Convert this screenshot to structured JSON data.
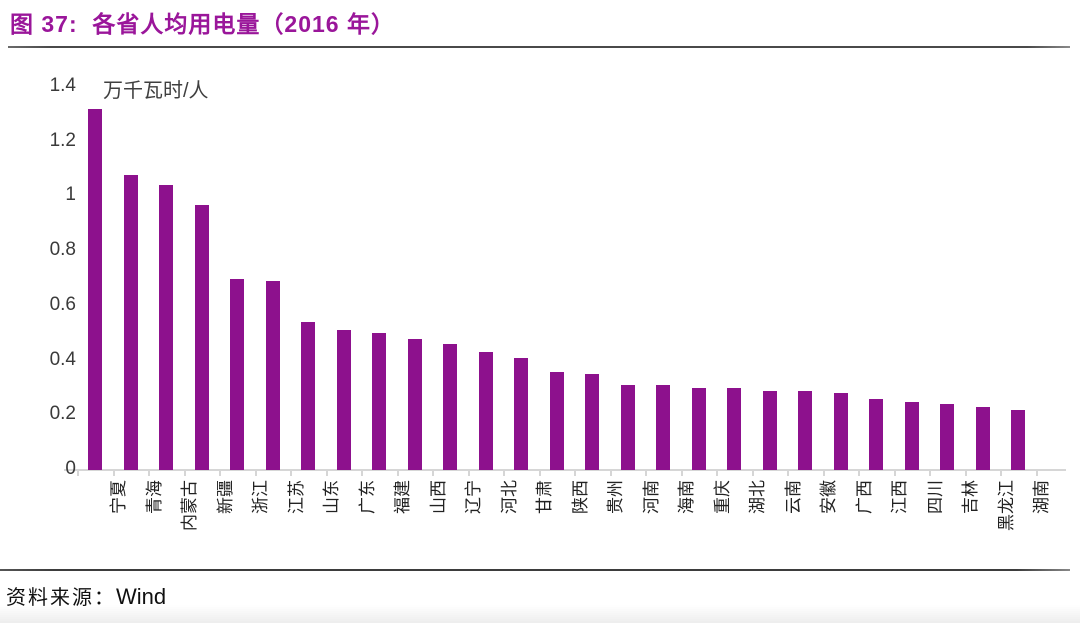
{
  "header": {
    "title": "图 37:  各省人均用电量（2016 年）"
  },
  "footer": {
    "source_label": "资料来源：",
    "source_value": "Wind"
  },
  "colors": {
    "title": "#9A169A",
    "bar": "#8D118D",
    "divider": "#4a4a4a",
    "axis": "#d6d6d6"
  },
  "chart_data": {
    "type": "bar",
    "title": "各省人均用电量（2016 年）",
    "unit_label": "万千瓦时/人",
    "xlabel": "",
    "ylabel": "万千瓦时/人",
    "ylim": [
      0,
      1.4
    ],
    "yticks": [
      0,
      0.2,
      0.4,
      0.6,
      0.8,
      1,
      1.2,
      1.4
    ],
    "grid": false,
    "legend": "none",
    "bar_color": "#8D118D",
    "categories": [
      "宁夏",
      "青海",
      "内蒙古",
      "新疆",
      "浙江",
      "江苏",
      "山东",
      "广东",
      "福建",
      "山西",
      "辽宁",
      "河北",
      "甘肃",
      "陕西",
      "贵州",
      "河南",
      "海南",
      "重庆",
      "湖北",
      "云南",
      "安徽",
      "广西",
      "江西",
      "四川",
      "吉林",
      "黑龙江",
      "湖南"
    ],
    "values": [
      1.32,
      1.08,
      1.04,
      0.97,
      0.7,
      0.69,
      0.54,
      0.51,
      0.5,
      0.48,
      0.46,
      0.43,
      0.41,
      0.36,
      0.35,
      0.31,
      0.31,
      0.3,
      0.3,
      0.29,
      0.29,
      0.28,
      0.26,
      0.25,
      0.24,
      0.23,
      0.22
    ]
  }
}
